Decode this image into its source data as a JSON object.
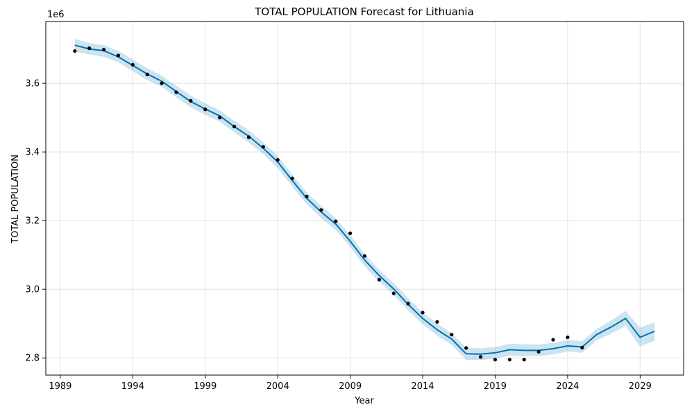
{
  "chart_data": {
    "type": "line",
    "title": "TOTAL POPULATION Forecast for Lithuania",
    "xlabel": "Year",
    "ylabel": "TOTAL POPULATION",
    "y_offset_label": "1e6",
    "xlim": [
      1988,
      2032
    ],
    "ylim": [
      2.75,
      3.78
    ],
    "x_ticks": [
      1989,
      1994,
      1999,
      2004,
      2009,
      2014,
      2019,
      2024,
      2029
    ],
    "y_ticks": [
      2.8,
      3.0,
      3.2,
      3.4,
      3.6
    ],
    "y_tick_labels": [
      "2.8",
      "3.0",
      "3.2",
      "3.4",
      "3.6"
    ],
    "grid": true,
    "colors": {
      "forecast": "#0072B2",
      "interval": "#0072B2",
      "actual": "#000000"
    },
    "series": [
      {
        "name": "actual",
        "kind": "points",
        "x": [
          1990,
          1991,
          1992,
          1993,
          1994,
          1995,
          1996,
          1997,
          1998,
          1999,
          2000,
          2001,
          2002,
          2003,
          2004,
          2005,
          2006,
          2007,
          2008,
          2009,
          2010,
          2011,
          2012,
          2013,
          2014,
          2015,
          2016,
          2017,
          2018,
          2019,
          2020,
          2021,
          2022,
          2023,
          2024,
          2025
        ],
        "values": [
          3.694,
          3.702,
          3.698,
          3.681,
          3.654,
          3.626,
          3.6,
          3.574,
          3.549,
          3.524,
          3.5,
          3.474,
          3.443,
          3.415,
          3.377,
          3.323,
          3.27,
          3.231,
          3.198,
          3.163,
          3.097,
          3.028,
          2.988,
          2.958,
          2.932,
          2.905,
          2.868,
          2.829,
          2.803,
          2.795,
          2.795,
          2.795,
          2.818,
          2.853,
          2.86,
          2.83
        ]
      },
      {
        "name": "forecast",
        "kind": "line",
        "x": [
          1990,
          1991,
          1992,
          1993,
          1994,
          1995,
          1996,
          1997,
          1998,
          1999,
          2000,
          2001,
          2002,
          2003,
          2004,
          2005,
          2006,
          2007,
          2008,
          2009,
          2010,
          2011,
          2012,
          2013,
          2014,
          2015,
          2016,
          2017,
          2018,
          2019,
          2020,
          2021,
          2022,
          2023,
          2024,
          2025,
          2026,
          2027,
          2028,
          2029,
          2030
        ],
        "values": [
          3.711,
          3.7,
          3.695,
          3.677,
          3.652,
          3.627,
          3.606,
          3.576,
          3.547,
          3.525,
          3.505,
          3.474,
          3.446,
          3.411,
          3.371,
          3.317,
          3.265,
          3.225,
          3.19,
          3.14,
          3.085,
          3.04,
          3.001,
          2.956,
          2.915,
          2.882,
          2.855,
          2.812,
          2.811,
          2.815,
          2.824,
          2.822,
          2.822,
          2.827,
          2.835,
          2.832,
          2.868,
          2.89,
          2.915,
          2.86,
          2.878
        ]
      },
      {
        "name": "interval",
        "kind": "band",
        "x": [
          1990,
          1991,
          1992,
          1993,
          1994,
          1995,
          1996,
          1997,
          1998,
          1999,
          2000,
          2001,
          2002,
          2003,
          2004,
          2005,
          2006,
          2007,
          2008,
          2009,
          2010,
          2011,
          2012,
          2013,
          2014,
          2015,
          2016,
          2017,
          2018,
          2019,
          2020,
          2021,
          2022,
          2023,
          2024,
          2025,
          2026,
          2027,
          2028,
          2029,
          2030
        ],
        "lower": [
          3.693,
          3.684,
          3.677,
          3.661,
          3.635,
          3.609,
          3.59,
          3.559,
          3.53,
          3.508,
          3.488,
          3.457,
          3.428,
          3.394,
          3.353,
          3.3,
          3.248,
          3.207,
          3.173,
          3.123,
          3.067,
          3.022,
          2.984,
          2.938,
          2.898,
          2.865,
          2.838,
          2.794,
          2.794,
          2.798,
          2.807,
          2.805,
          2.805,
          2.81,
          2.819,
          2.815,
          2.851,
          2.871,
          2.893,
          2.833,
          2.85
        ],
        "upper": [
          3.729,
          3.717,
          3.711,
          3.694,
          3.67,
          3.644,
          3.622,
          3.593,
          3.564,
          3.542,
          3.521,
          3.491,
          3.463,
          3.428,
          3.389,
          3.334,
          3.282,
          3.243,
          3.207,
          3.158,
          3.102,
          3.057,
          3.018,
          2.974,
          2.932,
          2.9,
          2.872,
          2.829,
          2.828,
          2.832,
          2.841,
          2.84,
          2.839,
          2.844,
          2.852,
          2.849,
          2.884,
          2.909,
          2.937,
          2.888,
          2.904
        ]
      }
    ]
  }
}
